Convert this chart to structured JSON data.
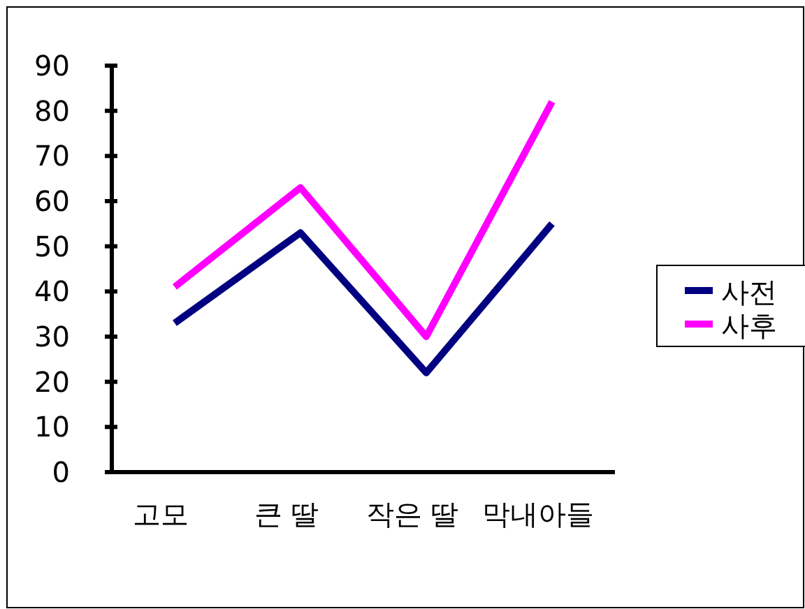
{
  "chart_data": {
    "type": "line",
    "categories": [
      "고모",
      "큰 딸",
      "작은 딸",
      "막내아들"
    ],
    "series": [
      {
        "name": "사전",
        "color": "#000080",
        "values": [
          33,
          53,
          22,
          55
        ]
      },
      {
        "name": "사후",
        "color": "#ff00ff",
        "values": [
          41,
          63,
          30,
          82
        ]
      }
    ],
    "ylim": [
      0,
      90
    ],
    "yticks": [
      0,
      10,
      20,
      30,
      40,
      50,
      60,
      70,
      80,
      90
    ],
    "grid": false,
    "legend": "right",
    "marker": "none",
    "line_style": "solid"
  }
}
